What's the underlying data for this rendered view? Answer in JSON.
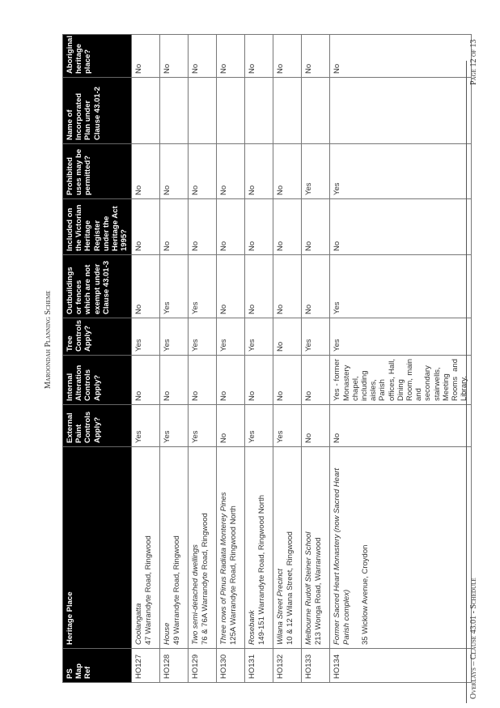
{
  "header": {
    "title": "Maroondah Planning Scheme"
  },
  "footer": {
    "left": "Overlays – Clause 43.01 - Schedule",
    "right": "Page 12 of 13"
  },
  "table": {
    "columns": [
      "PS Map Ref",
      "Heritage Place",
      "External Paint Controls Apply?",
      "Internal Alteration Controls Apply?",
      "Tree Controls Apply?",
      "Outbuildings or fences which are not exempt under Clause 43.01-3",
      "Included on the Victorian Heritage Register under the Heritage Act 1995?",
      "Prohibited uses may be permitted?",
      "Name of Incorporated Plan under Clause 43.01-2",
      "Aboriginal heritage place?"
    ],
    "rows": [
      {
        "ref": "HO127",
        "name": "Coolangatta",
        "address": "47 Warrandyte Road, Ringwood",
        "paint": "Yes",
        "internal": "No",
        "tree": "Yes",
        "outbuildings": "No",
        "vhr": "No",
        "prohibited": "No",
        "plan": "",
        "aboriginal": "No"
      },
      {
        "ref": "HO128",
        "name": "House",
        "address": "49 Warrandyte Road, Ringwood",
        "paint": "Yes",
        "internal": "No",
        "tree": "Yes",
        "outbuildings": "Yes",
        "vhr": "No",
        "prohibited": "No",
        "plan": "",
        "aboriginal": "No"
      },
      {
        "ref": "HO129",
        "name": "Two semi-detached dwellings",
        "address": "76 & 76A Warrandyte Road, Ringwood",
        "paint": "Yes",
        "internal": "No",
        "tree": "Yes",
        "outbuildings": "Yes",
        "vhr": "No",
        "prohibited": "No",
        "plan": "",
        "aboriginal": "No"
      },
      {
        "ref": "HO130",
        "name": "Three rows of Pinus Radiata Monterey Pines",
        "address": "125A Warrandyte Road, Ringwood North",
        "paint": "No",
        "internal": "No",
        "tree": "Yes",
        "outbuildings": "No",
        "vhr": "No",
        "prohibited": "No",
        "plan": "",
        "aboriginal": "No"
      },
      {
        "ref": "HO131",
        "name": "Rosebank",
        "address": "149-151 Warrandyte Road, Ringwood North",
        "paint": "Yes",
        "internal": "No",
        "tree": "Yes",
        "outbuildings": "No",
        "vhr": "No",
        "prohibited": "No",
        "plan": "",
        "aboriginal": "No"
      },
      {
        "ref": "HO132",
        "name": "Wilana Street Precinct",
        "address": "10 & 12 Wilana Street, Ringwood",
        "paint": "Yes",
        "internal": "No",
        "tree": "No",
        "outbuildings": "No",
        "vhr": "No",
        "prohibited": "No",
        "plan": "",
        "aboriginal": "No"
      },
      {
        "ref": "HO133",
        "name": "Melbourne Rudolf Steiner School",
        "address": "213 Wonga Road, Warranwood",
        "paint": "No",
        "internal": "No",
        "tree": "Yes",
        "outbuildings": "No",
        "vhr": "No",
        "prohibited": "Yes",
        "plan": "",
        "aboriginal": "No"
      },
      {
        "ref": "HO134",
        "name": "Former Sacred Heart Monastery (now Sacred Heart Parish complex)",
        "address": "35 Wicklow Avenue, Croydon",
        "paint": "No",
        "internal": "Yes - former Monastery chapel, including aisles, Parish offices, Hall, Dining Room, main and secondary stairwells, Meeting Rooms and Library.",
        "tree": "Yes",
        "outbuildings": "Yes",
        "vhr": "No",
        "prohibited": "Yes",
        "plan": "",
        "aboriginal": "No"
      }
    ]
  }
}
